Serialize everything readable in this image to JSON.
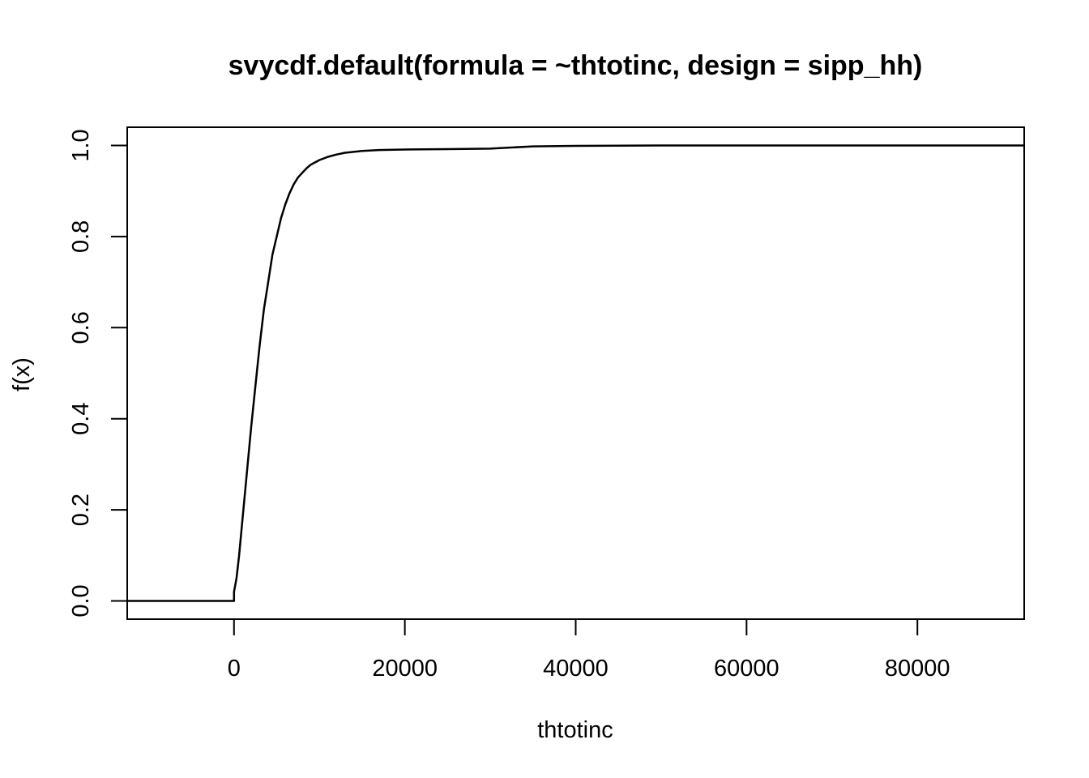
{
  "chart_data": {
    "type": "line",
    "title": "svycdf.default(formula = ~thtotinc, design = sipp_hh)",
    "xlabel": "thtotinc",
    "ylabel": "f(x)",
    "xlim": [
      -12500,
      92500
    ],
    "ylim": [
      -0.04,
      1.04
    ],
    "x_ticks": [
      0,
      20000,
      40000,
      60000,
      80000
    ],
    "x_tick_labels": [
      "0",
      "20000",
      "40000",
      "60000",
      "80000"
    ],
    "y_ticks": [
      0.0,
      0.2,
      0.4,
      0.6,
      0.8,
      1.0
    ],
    "y_tick_labels": [
      "0.0",
      "0.2",
      "0.4",
      "0.6",
      "0.8",
      "1.0"
    ],
    "grid": false,
    "legend": "none",
    "series": [
      {
        "x": [
          -12500,
          -2000,
          0,
          0,
          300,
          600,
          1000,
          1500,
          2000,
          2500,
          3000,
          3500,
          4000,
          4500,
          5000,
          5500,
          6000,
          6500,
          7000,
          7500,
          8000,
          8500,
          9000,
          10000,
          11000,
          12000,
          13000,
          14000,
          15000,
          17000,
          20000,
          25000,
          30000,
          35000,
          40000,
          50000,
          92500
        ],
        "y": [
          0,
          0,
          0,
          0.02,
          0.05,
          0.1,
          0.18,
          0.28,
          0.38,
          0.47,
          0.56,
          0.64,
          0.7,
          0.76,
          0.8,
          0.84,
          0.87,
          0.895,
          0.915,
          0.93,
          0.94,
          0.95,
          0.958,
          0.968,
          0.975,
          0.98,
          0.984,
          0.986,
          0.988,
          0.99,
          0.991,
          0.992,
          0.993,
          0.998,
          0.999,
          1.0,
          1.0
        ],
        "color": "#000000"
      }
    ]
  }
}
